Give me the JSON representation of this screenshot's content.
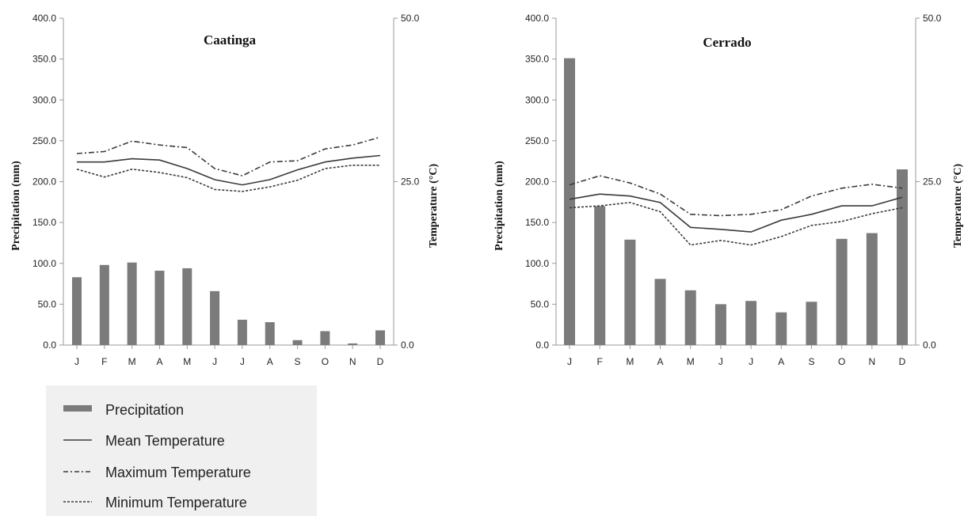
{
  "chart_data": [
    {
      "type": "bar",
      "title": "Caatinga",
      "categories": [
        "J",
        "F",
        "M",
        "A",
        "M",
        "J",
        "J",
        "A",
        "S",
        "O",
        "N",
        "D"
      ],
      "ylabel": "Precipitation (mm)",
      "y2label": "Temperature (°C)",
      "ylim": [
        0,
        400
      ],
      "y2lim": [
        0,
        50
      ],
      "yticks": [
        "0.0",
        "50.0",
        "100.0",
        "150.0",
        "200.0",
        "250.0",
        "300.0",
        "350.0",
        "400.0"
      ],
      "y2ticks": [
        "0.0",
        "25.0",
        "50.0"
      ],
      "series": [
        {
          "name": "Precipitation",
          "type": "bar",
          "axis": "left",
          "values": [
            83,
            98,
            101,
            91,
            94,
            66,
            31,
            28,
            6,
            17,
            2,
            18
          ]
        },
        {
          "name": "Mean Temperature",
          "type": "line",
          "axis": "right",
          "values": [
            28.0,
            28.0,
            28.5,
            28.3,
            27.0,
            25.3,
            24.5,
            25.3,
            26.8,
            28.0,
            28.6,
            29.0
          ]
        },
        {
          "name": "Maximum Temperature",
          "type": "line",
          "axis": "right",
          "values": [
            29.3,
            29.6,
            31.2,
            30.6,
            30.2,
            27.0,
            25.9,
            28.0,
            28.2,
            30.0,
            30.6,
            31.8
          ]
        },
        {
          "name": "Minimum Temperature",
          "type": "line",
          "axis": "right",
          "values": [
            26.9,
            25.7,
            26.9,
            26.4,
            25.6,
            23.8,
            23.5,
            24.2,
            25.2,
            27.0,
            27.5,
            27.5
          ]
        }
      ]
    },
    {
      "type": "bar",
      "title": "Cerrado",
      "categories": [
        "J",
        "F",
        "M",
        "A",
        "M",
        "J",
        "J",
        "A",
        "S",
        "O",
        "N",
        "D"
      ],
      "ylabel": "Precipitation (mm)",
      "y2label": "Temperature (°C)",
      "ylim": [
        0,
        400
      ],
      "y2lim": [
        0,
        50
      ],
      "yticks": [
        "0.0",
        "50.0",
        "100.0",
        "150.0",
        "200.0",
        "250.0",
        "300.0",
        "350.0",
        "400.0"
      ],
      "y2ticks": [
        "0.0",
        "25.0",
        "50.0"
      ],
      "series": [
        {
          "name": "Precipitation",
          "type": "bar",
          "axis": "left",
          "values": [
            351,
            170,
            129,
            81,
            67,
            50,
            54,
            40,
            53,
            130,
            137,
            215
          ]
        },
        {
          "name": "Mean Temperature",
          "type": "line",
          "axis": "right",
          "values": [
            22.3,
            23.1,
            22.8,
            21.8,
            18.0,
            17.7,
            17.3,
            19.1,
            20.0,
            21.3,
            21.3,
            22.6
          ]
        },
        {
          "name": "Maximum Temperature",
          "type": "line",
          "axis": "right",
          "values": [
            24.5,
            25.9,
            24.8,
            23.1,
            20.0,
            19.8,
            20.0,
            20.7,
            22.8,
            24.0,
            24.6,
            24.0
          ]
        },
        {
          "name": "Minimum Temperature",
          "type": "line",
          "axis": "right",
          "values": [
            21.0,
            21.3,
            21.8,
            20.4,
            15.3,
            16.0,
            15.3,
            16.6,
            18.3,
            18.9,
            20.1,
            21.0
          ]
        }
      ]
    }
  ],
  "legend": {
    "items": [
      {
        "label": "Precipitation",
        "style": "bar"
      },
      {
        "label": "Mean Temperature",
        "style": "solid"
      },
      {
        "label": "Maximum Temperature",
        "style": "dashdot"
      },
      {
        "label": "Minimum Temperature",
        "style": "dotted"
      }
    ]
  },
  "colors": {
    "bar": "#7b7b7b",
    "line": "#3a3a3a",
    "axis": "#9a9a9a",
    "legend_bg": "#f0f0f0"
  }
}
